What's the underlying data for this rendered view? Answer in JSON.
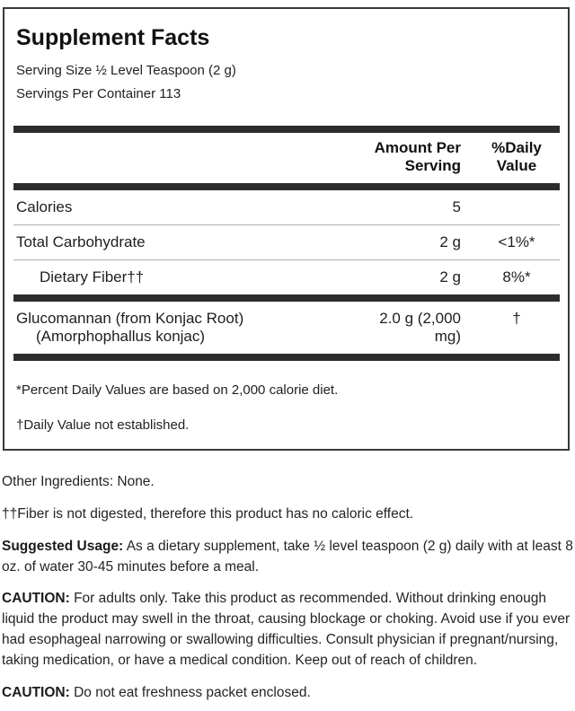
{
  "label": {
    "title": "Supplement Facts",
    "serving_size": "Serving Size ½ Level Teaspoon (2 g)",
    "servings_per_container": "Servings Per Container 113",
    "columns": {
      "amount": "Amount Per Serving",
      "daily_value": "%Daily Value"
    },
    "rows": [
      {
        "name": "Calories",
        "amount": "5",
        "dv": ""
      },
      {
        "name": "Total Carbohydrate",
        "amount": "2 g",
        "dv": "<1%*"
      },
      {
        "name": "Dietary Fiber††",
        "amount": "2 g",
        "dv": "8%*"
      },
      {
        "name_line1": "Glucomannan (from Konjac Root)",
        "name_line2": "(Amorphophallus konjac)",
        "amount": "2.0 g (2,000 mg)",
        "dv": "†"
      }
    ],
    "footnotes": [
      "*Percent Daily Values are based on 2,000 calorie diet.",
      "†Daily Value not established."
    ],
    "colors": {
      "divider_heavy": "#2d2d2d",
      "divider_light": "#aeaeae",
      "border": "#3a3a3a",
      "text": "#1e1e1e"
    }
  },
  "below": {
    "other_ingredients": "Other Ingredients: None.",
    "fiber_note": "††Fiber is not digested, therefore this product has no caloric effect.",
    "suggested_usage": {
      "lead": "Suggested Usage:",
      "text": "As a dietary supplement, take ½ level teaspoon (2 g) daily with at least 8 oz. of water 30-45 minutes before a meal."
    },
    "caution_1": {
      "lead": "CAUTION:",
      "text": "For adults only. Take this product as recommended. Without drinking enough liquid the product may swell in the throat, causing blockage or choking. Avoid use if you ever had esophageal narrowing or swallowing difficulties. Consult physician if pregnant/nursing, taking medication, or have a medical condition. Keep out of reach of children."
    },
    "caution_2": {
      "lead": "CAUTION:",
      "text": "Do not eat freshness packet enclosed."
    }
  }
}
